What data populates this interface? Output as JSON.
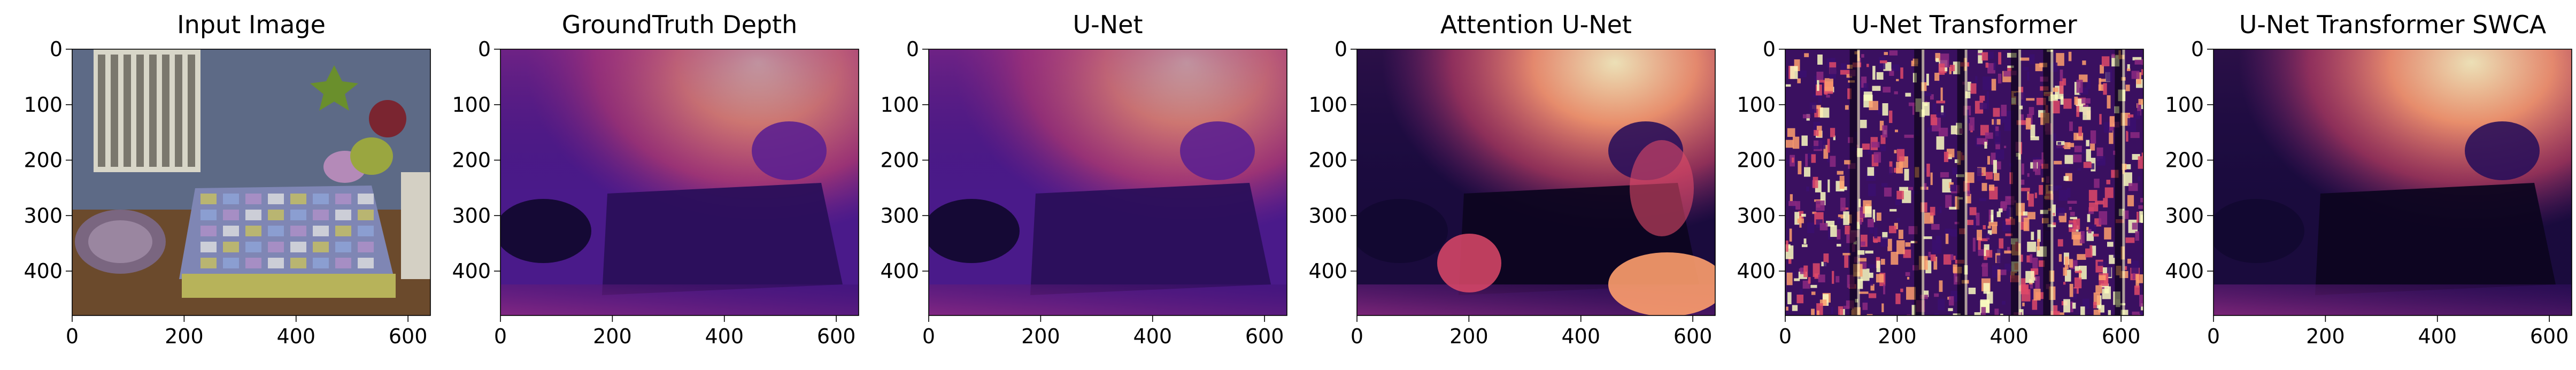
{
  "figure": {
    "panels": [
      {
        "id": "input",
        "title": "Input Image",
        "kind": "photo"
      },
      {
        "id": "gt",
        "title": "GroundTruth Depth",
        "kind": "depth"
      },
      {
        "id": "unet",
        "title": "U-Net",
        "kind": "depth-smooth"
      },
      {
        "id": "attn",
        "title": "Attention U-Net",
        "kind": "depth-dark"
      },
      {
        "id": "unet_tr",
        "title": "U-Net Transformer",
        "kind": "noise"
      },
      {
        "id": "swca",
        "title": "U-Net Transformer SWCA",
        "kind": "depth-dark-smooth"
      }
    ],
    "x_ticks": [
      "0",
      "200",
      "400",
      "600"
    ],
    "y_ticks": [
      "0",
      "100",
      "200",
      "300",
      "400"
    ],
    "colormap_colors": [
      "#000004",
      "#3b0f70",
      "#8c2981",
      "#de4968",
      "#fe9f6d",
      "#fcfdbf"
    ]
  }
}
